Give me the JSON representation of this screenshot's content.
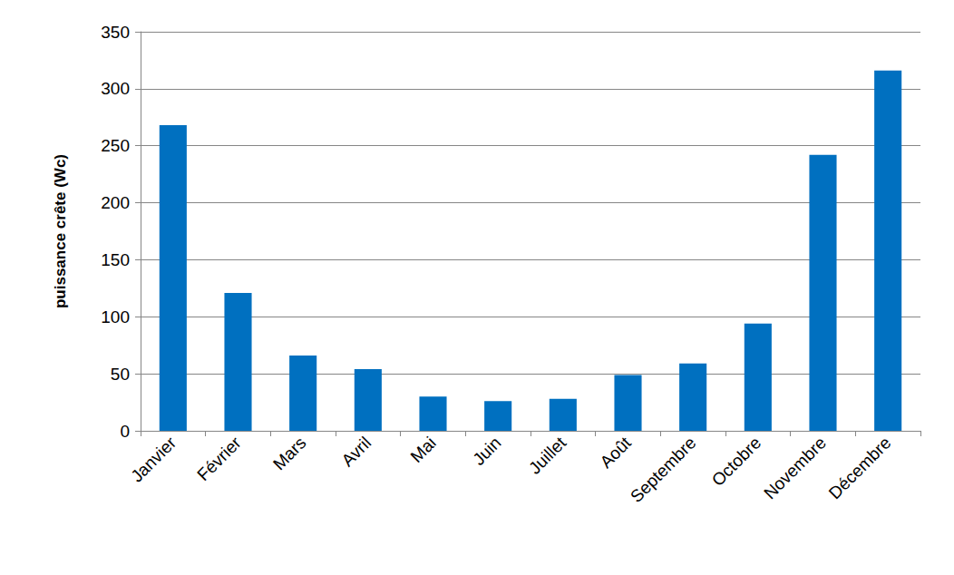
{
  "chart_data": {
    "type": "bar",
    "y_label": "puissance crête (Wc)",
    "categories": [
      "Janvier",
      "Février",
      "Mars",
      "Avril",
      "Mai",
      "Juin",
      "Juillet",
      "Août",
      "Septembre",
      "Octobre",
      "Novembre",
      "Décembre"
    ],
    "values": [
      268,
      121,
      66,
      54,
      30,
      26,
      28,
      49,
      59,
      94,
      242,
      316
    ],
    "color": "#0070c0",
    "ylim": [
      0,
      350
    ],
    "yticks": [
      0,
      50,
      100,
      150,
      200,
      250,
      300,
      350
    ],
    "grid": true
  }
}
